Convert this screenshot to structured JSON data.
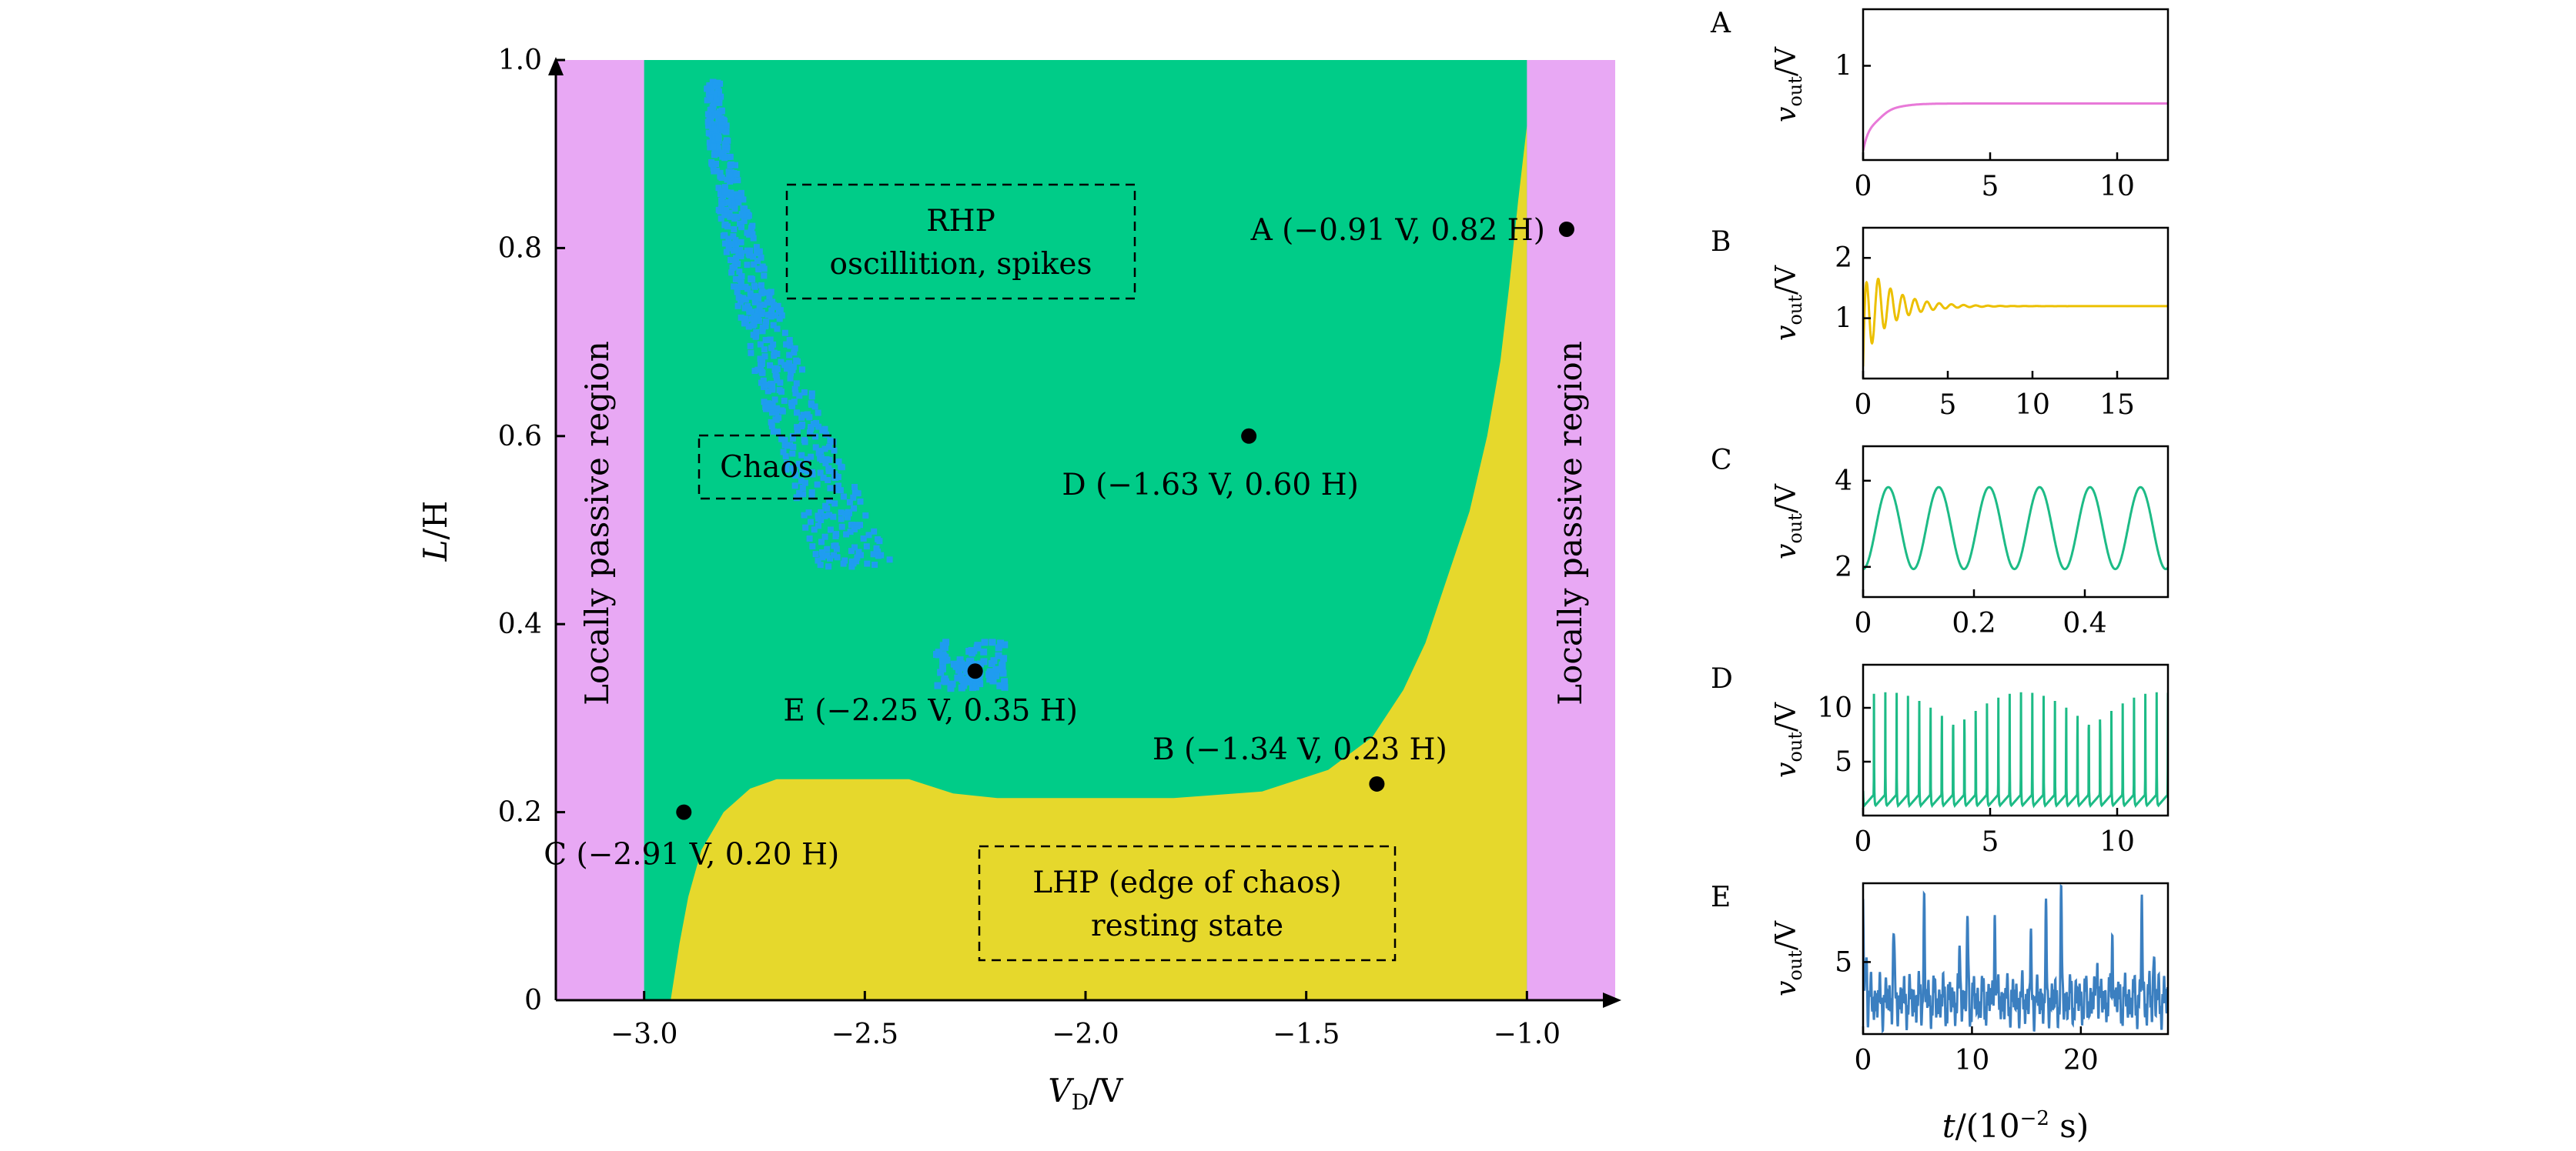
{
  "chart_data": [
    {
      "id": "phase-diagram",
      "type": "heatmap",
      "xlabel": "V",
      "xlabel_sub": "D",
      "xlabel_suffix": "/V",
      "ylabel": "L",
      "ylabel_suffix": "/H",
      "xlim": [
        -3.2,
        -0.8
      ],
      "ylim": [
        0,
        1.0
      ],
      "xticks": [
        {
          "v": -3.0,
          "label": "−3.0"
        },
        {
          "v": -2.5,
          "label": "−2.5"
        },
        {
          "v": -2.0,
          "label": "−2.0"
        },
        {
          "v": -1.5,
          "label": "−1.5"
        },
        {
          "v": -1.0,
          "label": "−1.0"
        }
      ],
      "yticks": [
        {
          "v": 0,
          "label": "0"
        },
        {
          "v": 0.2,
          "label": "0.2"
        },
        {
          "v": 0.4,
          "label": "0.4"
        },
        {
          "v": 0.6,
          "label": "0.6"
        },
        {
          "v": 0.8,
          "label": "0.8"
        },
        {
          "v": 1.0,
          "label": "1.0"
        }
      ],
      "regions": {
        "passive": {
          "label": "Locally passive region",
          "color": "#e8a8f4",
          "left_range": [
            -3.2,
            -3.0
          ],
          "right_range": [
            -1.0,
            -0.8
          ]
        },
        "rhp": {
          "label_line1": "RHP",
          "label_line2": "oscillition, spikes",
          "color": "#00cc88"
        },
        "lhp": {
          "label_line1": "LHP (edge of chaos)",
          "label_line2": "resting state",
          "color": "#e6d82c"
        },
        "chaos": {
          "label": "Chaos",
          "color": "#1f9cf0"
        }
      },
      "lhp_boundary": [
        [
          -3.0,
          0.0
        ],
        [
          -2.94,
          0.0
        ],
        [
          -2.92,
          0.06
        ],
        [
          -2.9,
          0.11
        ],
        [
          -2.87,
          0.16
        ],
        [
          -2.82,
          0.2
        ],
        [
          -2.76,
          0.225
        ],
        [
          -2.7,
          0.235
        ],
        [
          -2.6,
          0.235
        ],
        [
          -2.5,
          0.235
        ],
        [
          -2.4,
          0.235
        ],
        [
          -2.3,
          0.22
        ],
        [
          -2.2,
          0.215
        ],
        [
          -2.0,
          0.215
        ],
        [
          -1.8,
          0.215
        ],
        [
          -1.6,
          0.222
        ],
        [
          -1.45,
          0.245
        ],
        [
          -1.35,
          0.28
        ],
        [
          -1.28,
          0.33
        ],
        [
          -1.23,
          0.38
        ],
        [
          -1.18,
          0.45
        ],
        [
          -1.13,
          0.52
        ],
        [
          -1.09,
          0.6
        ],
        [
          -1.06,
          0.68
        ],
        [
          -1.04,
          0.76
        ],
        [
          -1.02,
          0.85
        ],
        [
          -1.0,
          0.93
        ],
        [
          -1.0,
          0.0
        ]
      ],
      "points": [
        {
          "name": "A",
          "x": -0.91,
          "y": 0.82,
          "label": "A (−0.91 V, 0.82 H)",
          "anchor": "end"
        },
        {
          "name": "B",
          "x": -1.34,
          "y": 0.23,
          "label": "B (−1.34 V, 0.23 H)",
          "anchor": "above"
        },
        {
          "name": "C",
          "x": -2.91,
          "y": 0.2,
          "label": "C (−2.91 V, 0.20 H)",
          "anchor": "below"
        },
        {
          "name": "D",
          "x": -1.63,
          "y": 0.6,
          "label": "D (−1.63 V, 0.60 H)",
          "anchor": "below"
        },
        {
          "name": "E",
          "x": -2.25,
          "y": 0.35,
          "label": "E (−2.25 V, 0.35 H)",
          "anchor": "below"
        }
      ]
    },
    {
      "id": "panel-A",
      "letter": "A",
      "type": "line",
      "color": "#e879d8",
      "xlim": [
        0,
        12
      ],
      "ylim": [
        0,
        1.6
      ],
      "xticks": [
        {
          "v": 0,
          "label": "0"
        },
        {
          "v": 5,
          "label": "5"
        },
        {
          "v": 10,
          "label": "10"
        }
      ],
      "yticks": [
        {
          "v": 1,
          "label": "1"
        }
      ],
      "ylabel": "v",
      "ylabel_sub": "out",
      "ylabel_suffix": "/V"
    },
    {
      "id": "panel-B",
      "letter": "B",
      "type": "line",
      "color": "#ecc000",
      "xlim": [
        0,
        18
      ],
      "ylim": [
        0,
        2.5
      ],
      "xticks": [
        {
          "v": 0,
          "label": "0"
        },
        {
          "v": 5,
          "label": "5"
        },
        {
          "v": 10,
          "label": "10"
        },
        {
          "v": 15,
          "label": "15"
        }
      ],
      "yticks": [
        {
          "v": 1,
          "label": "1"
        },
        {
          "v": 2,
          "label": "2"
        }
      ],
      "ylabel": "v",
      "ylabel_sub": "out",
      "ylabel_suffix": "/V"
    },
    {
      "id": "panel-C",
      "letter": "C",
      "type": "line",
      "color": "#1dbb86",
      "xlim": [
        0,
        0.55
      ],
      "ylim": [
        1.3,
        4.8
      ],
      "xticks": [
        {
          "v": 0,
          "label": "0"
        },
        {
          "v": 0.2,
          "label": "0.2"
        },
        {
          "v": 0.4,
          "label": "0.4"
        }
      ],
      "yticks": [
        {
          "v": 2,
          "label": "2"
        },
        {
          "v": 4,
          "label": "4"
        }
      ],
      "ylabel": "v",
      "ylabel_sub": "out",
      "ylabel_suffix": "/V"
    },
    {
      "id": "panel-D",
      "letter": "D",
      "type": "line",
      "color": "#1dbb86",
      "xlim": [
        0,
        12
      ],
      "ylim": [
        0,
        14
      ],
      "xticks": [
        {
          "v": 0,
          "label": "0"
        },
        {
          "v": 5,
          "label": "5"
        },
        {
          "v": 10,
          "label": "10"
        }
      ],
      "yticks": [
        {
          "v": 5,
          "label": "5"
        },
        {
          "v": 10,
          "label": "10"
        }
      ],
      "ylabel": "v",
      "ylabel_sub": "out",
      "ylabel_suffix": "/V"
    },
    {
      "id": "panel-E",
      "letter": "E",
      "type": "line",
      "color": "#3b7fc0",
      "xlim": [
        0,
        28
      ],
      "ylim": [
        1.8,
        8.5
      ],
      "xticks": [
        {
          "v": 0,
          "label": "0"
        },
        {
          "v": 10,
          "label": "10"
        },
        {
          "v": 20,
          "label": "20"
        }
      ],
      "yticks": [
        {
          "v": 5,
          "label": "5"
        }
      ],
      "ylabel": "v",
      "ylabel_sub": "out",
      "ylabel_suffix": "/V",
      "xlabel": "t/(10",
      "xlabel_sup": "−2",
      "xlabel_suffix": " s)"
    }
  ]
}
